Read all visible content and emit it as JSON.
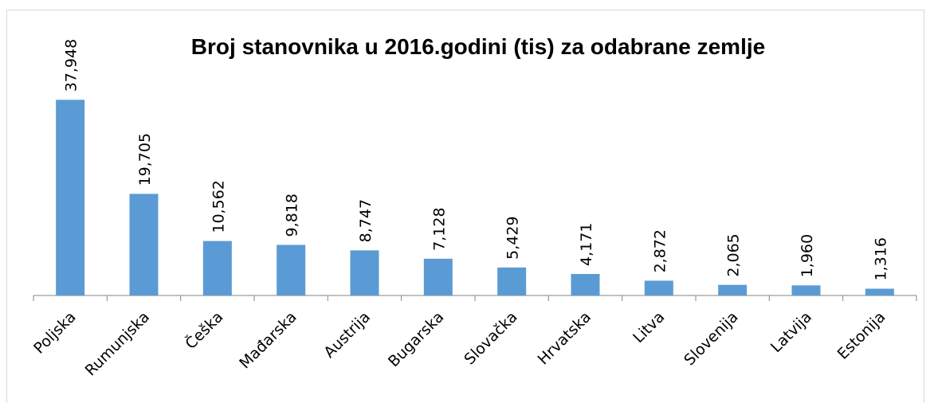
{
  "chart_data": {
    "type": "bar",
    "title": "Broj stanovnika u 2016.godini (tis) za odabrane zemlje",
    "categories": [
      "Poljska",
      "Rumunjska",
      "Češka",
      "Mađarska",
      "Austrija",
      "Bugarska",
      "Slovačka",
      "Hrvatska",
      "Litva",
      "Slovenija",
      "Latvija",
      "Estonija"
    ],
    "values": [
      37948,
      19705,
      10562,
      9818,
      8747,
      7128,
      5429,
      4171,
      2872,
      2065,
      1960,
      1316
    ],
    "value_labels": [
      "37,948",
      "19,705",
      "10,562",
      "9,818",
      "8,747",
      "7,128",
      "5,429",
      "4,171",
      "2,872",
      "2,065",
      "1,960",
      "1,316"
    ],
    "color": "#5b9bd5",
    "ylim": [
      0,
      40000
    ]
  }
}
